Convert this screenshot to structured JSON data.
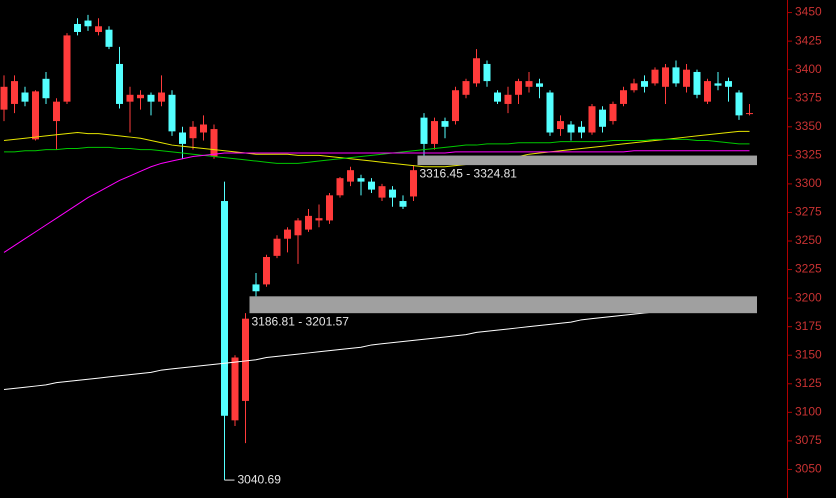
{
  "chart_data": {
    "type": "candlestick",
    "open": [
      3365,
      3370,
      3380,
      3339,
      3392,
      3355,
      3372,
      3440,
      3443,
      3433,
      3435,
      3405,
      3372,
      3375,
      3378,
      3372,
      3378,
      3345,
      3340,
      3345,
      3324,
      3285,
      3093,
      3110,
      3212,
      3212,
      3237,
      3252,
      3255,
      3260,
      3268,
      3268,
      3290,
      3302,
      3305,
      3302,
      3288,
      3295,
      3285,
      3289,
      3358,
      3335,
      3355,
      3355,
      3378,
      3388,
      3405,
      3380,
      3370,
      3378,
      3385,
      3388,
      3380,
      3348,
      3352,
      3350,
      3345,
      3365,
      3355,
      3370,
      3382,
      3390,
      3388,
      3385,
      3402,
      3385,
      3398,
      3372,
      3388,
      3390,
      3380,
      3362
    ],
    "high": [
      3395,
      3395,
      3385,
      3382,
      3398,
      3375,
      3432,
      3445,
      3448,
      3445,
      3438,
      3420,
      3385,
      3382,
      3380,
      3395,
      3382,
      3350,
      3355,
      3360,
      3352,
      3302,
      3150,
      3186.81,
      3222,
      3238,
      3255,
      3262,
      3270,
      3278,
      3282,
      3292,
      3306,
      3315,
      3308,
      3305,
      3300,
      3298,
      3290,
      3316.45,
      3362,
      3358,
      3358,
      3385,
      3392,
      3418,
      3408,
      3382,
      3385,
      3392,
      3398,
      3392,
      3382,
      3360,
      3355,
      3355,
      3370,
      3368,
      3372,
      3385,
      3392,
      3395,
      3402,
      3405,
      3408,
      3405,
      3400,
      3392,
      3398,
      3393,
      3382,
      3370
    ],
    "low": [
      3355,
      3362,
      3368,
      3338,
      3370,
      3330,
      3370,
      3430,
      3434,
      3430,
      3418,
      3366,
      3345,
      3365,
      3360,
      3368,
      3342,
      3322,
      3330,
      3338,
      3322,
      3040.69,
      3088,
      3073,
      3201.57,
      3210,
      3235,
      3240,
      3230,
      3258,
      3262,
      3265,
      3288,
      3298,
      3290,
      3292,
      3285,
      3280,
      3278,
      3285,
      3324.81,
      3330,
      3340,
      3352,
      3375,
      3385,
      3385,
      3370,
      3362,
      3370,
      3380,
      3375,
      3342,
      3342,
      3338,
      3340,
      3343,
      3345,
      3352,
      3368,
      3380,
      3380,
      3386,
      3370,
      3385,
      3380,
      3375,
      3370,
      3382,
      3372,
      3356,
      3360
    ],
    "close": [
      3385,
      3390,
      3372,
      3381,
      3375,
      3372,
      3430,
      3433,
      3438,
      3438,
      3420,
      3370,
      3378,
      3378,
      3372,
      3380,
      3346,
      3335,
      3350,
      3352,
      3348,
      3097,
      3148,
      3182,
      3206,
      3236,
      3252,
      3260,
      3268,
      3272,
      3270,
      3290,
      3305,
      3312,
      3302,
      3295,
      3298,
      3288,
      3280,
      3312,
      3335,
      3355,
      3350,
      3382,
      3390,
      3410,
      3390,
      3372,
      3378,
      3390,
      3390,
      3385,
      3345,
      3355,
      3345,
      3345,
      3368,
      3350,
      3370,
      3382,
      3388,
      3385,
      3400,
      3402,
      3388,
      3400,
      3378,
      3390,
      3386,
      3385,
      3360,
      3362
    ],
    "up_color": "#ff3b3b",
    "down_color": "#54ffff",
    "moving_averages": [
      {
        "color": "#ffffff",
        "values": [
          3120,
          3121,
          3122,
          3123,
          3124,
          3126,
          3127,
          3128,
          3129,
          3130,
          3131,
          3132,
          3133,
          3134,
          3135,
          3137,
          3138,
          3139,
          3140,
          3141,
          3142,
          3143,
          3144,
          3145,
          3146,
          3148,
          3149,
          3150,
          3151,
          3152,
          3153,
          3154,
          3155,
          3156,
          3157,
          3159,
          3160,
          3161,
          3162,
          3163,
          3164,
          3165,
          3166,
          3167,
          3168,
          3170,
          3171,
          3172,
          3173,
          3174,
          3175,
          3176,
          3177,
          3178,
          3179,
          3181,
          3182,
          3183,
          3184,
          3185,
          3186,
          3187,
          3188,
          3189,
          3190,
          3192,
          3193,
          3194,
          3195,
          3196,
          3197,
          3198
        ]
      },
      {
        "color": "#e6e600",
        "values": [
          3338,
          3339,
          3340,
          3341,
          3342,
          3343,
          3344,
          3345,
          3344,
          3344,
          3343,
          3342,
          3341,
          3340,
          3338,
          3336,
          3334,
          3333,
          3332,
          3331,
          3330,
          3329,
          3328,
          3327,
          3326,
          3326,
          3326,
          3326,
          3325,
          3325,
          3325,
          3324,
          3323,
          3322,
          3321,
          3320,
          3319,
          3318,
          3317,
          3316,
          3315,
          3315,
          3315,
          3316,
          3317,
          3318,
          3319,
          3320,
          3322,
          3324,
          3326,
          3327,
          3328,
          3329,
          3330,
          3331,
          3332,
          3333,
          3334,
          3335,
          3336,
          3337,
          3338,
          3339,
          3340,
          3341,
          3342,
          3343,
          3344,
          3345,
          3346,
          3346
        ]
      },
      {
        "color": "#00c800",
        "values": [
          3328,
          3328,
          3329,
          3329,
          3330,
          3330,
          3331,
          3331,
          3332,
          3332,
          3332,
          3331,
          3331,
          3330,
          3330,
          3329,
          3328,
          3327,
          3326,
          3325,
          3324,
          3323,
          3322,
          3321,
          3320,
          3319,
          3318,
          3318,
          3318,
          3319,
          3320,
          3321,
          3322,
          3323,
          3324,
          3325,
          3326,
          3327,
          3328,
          3329,
          3330,
          3331,
          3332,
          3333,
          3334,
          3334,
          3335,
          3335,
          3335,
          3336,
          3336,
          3336,
          3336,
          3337,
          3337,
          3337,
          3337,
          3337,
          3338,
          3338,
          3338,
          3338,
          3339,
          3339,
          3339,
          3339,
          3338,
          3338,
          3337,
          3336,
          3335,
          3335
        ]
      },
      {
        "color": "#ff00ff",
        "values": [
          3240,
          3246,
          3252,
          3258,
          3264,
          3270,
          3276,
          3282,
          3288,
          3293,
          3298,
          3303,
          3307,
          3311,
          3315,
          3318,
          3320,
          3322,
          3324,
          3325,
          3326,
          3327,
          3327,
          3327,
          3327,
          3327,
          3327,
          3327,
          3327,
          3327,
          3327,
          3327,
          3327,
          3327,
          3327,
          3327,
          3327,
          3327,
          3327,
          3327,
          3327,
          3327,
          3327,
          3328,
          3328,
          3328,
          3328,
          3328,
          3328,
          3328,
          3328,
          3328,
          3328,
          3328,
          3328,
          3328,
          3328,
          3328,
          3328,
          3328,
          3329,
          3329,
          3329,
          3329,
          3329,
          3329,
          3329,
          3329,
          3329,
          3329,
          3329,
          3329
        ]
      }
    ],
    "gaps": [
      {
        "low": 3186.81,
        "high": 3201.57,
        "label": "3186.81 - 3201.57"
      },
      {
        "low": 3316.45,
        "high": 3324.81,
        "label": "3316.45 - 3324.81"
      }
    ],
    "ylim": [
      3025,
      3461
    ],
    "yticks": [
      3050,
      3075,
      3100,
      3125,
      3150,
      3175,
      3200,
      3225,
      3250,
      3275,
      3300,
      3325,
      3350,
      3375,
      3400,
      3425,
      3450
    ],
    "grid": false
  }
}
